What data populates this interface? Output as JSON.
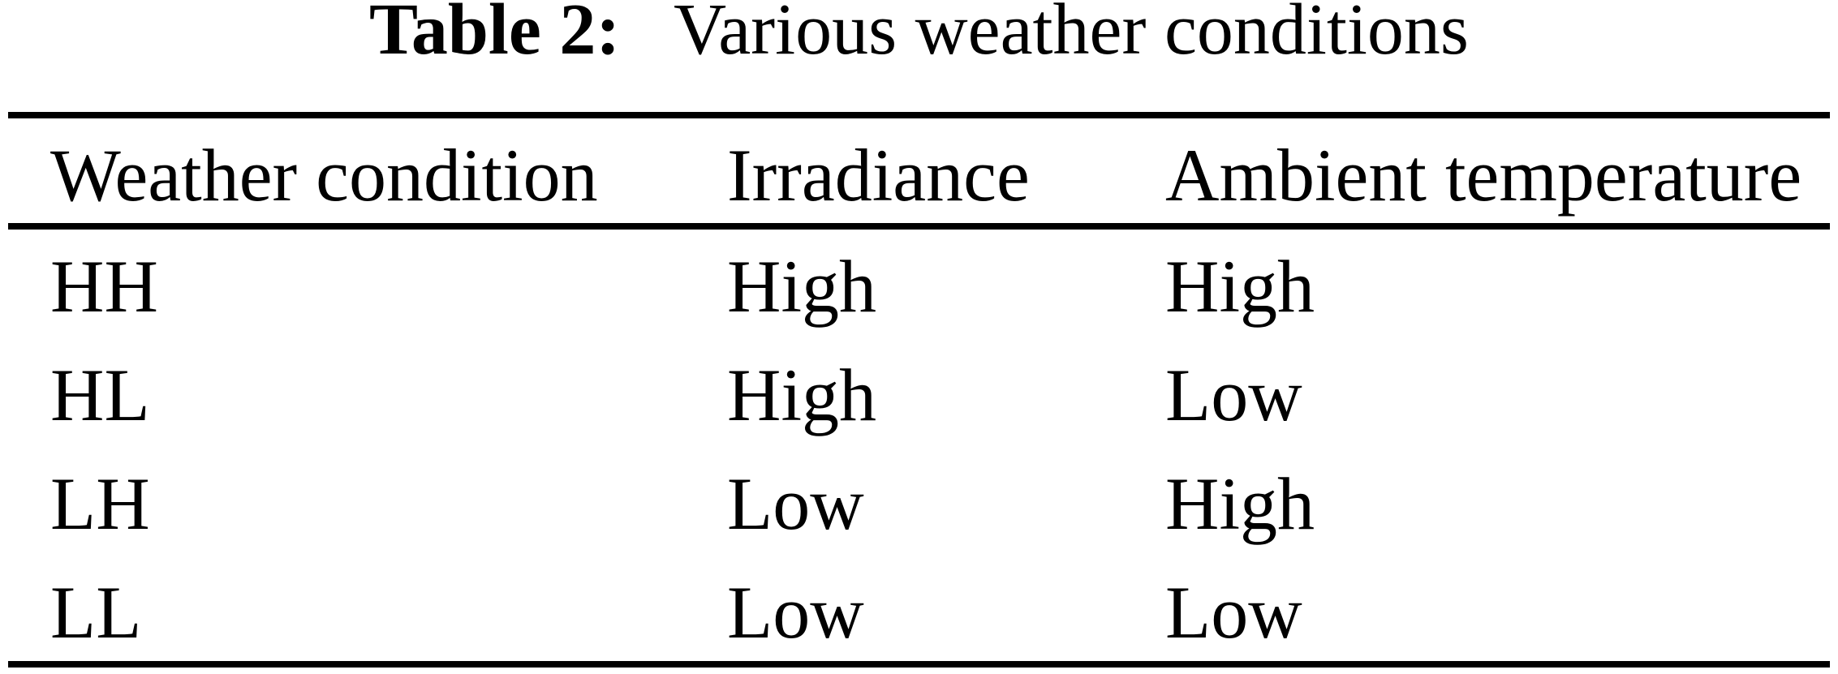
{
  "caption": {
    "label": "Table 2:",
    "text": "Various weather conditions"
  },
  "table": {
    "columns": {
      "weather_condition": "Weather condition",
      "irradiance": "Irradiance",
      "ambient_temperature": "Ambient temperature"
    },
    "rows": [
      {
        "weather_condition": "HH",
        "irradiance": "High",
        "ambient_temperature": "High"
      },
      {
        "weather_condition": "HL",
        "irradiance": "High",
        "ambient_temperature": "Low"
      },
      {
        "weather_condition": "LH",
        "irradiance": "Low",
        "ambient_temperature": "High"
      },
      {
        "weather_condition": "LL",
        "irradiance": "Low",
        "ambient_temperature": "Low"
      }
    ]
  },
  "colors": {
    "background": "#ffffff",
    "text": "#000000",
    "rule": "#000000"
  }
}
